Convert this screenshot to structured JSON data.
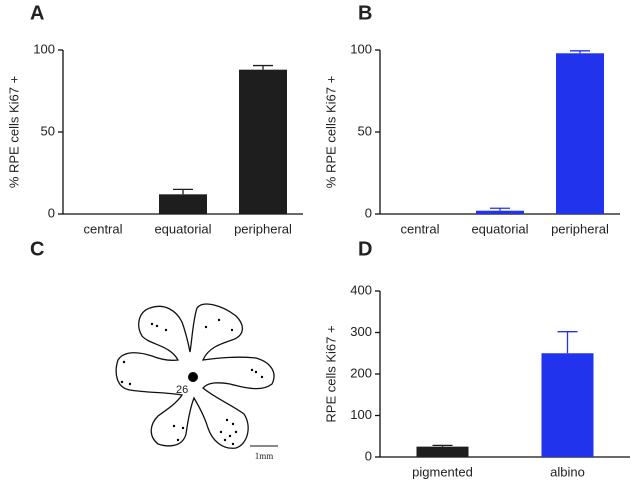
{
  "chart_data": [
    {
      "type": "bar",
      "panel": "A",
      "ylabel": "% RPE cells Ki67 +",
      "categories": [
        "central",
        "equatorial",
        "peripheral"
      ],
      "values": [
        0,
        12,
        88
      ],
      "errors": [
        0,
        3,
        2.5
      ],
      "colors": [
        "#1e1e1e",
        "#1e1e1e",
        "#1e1e1e"
      ],
      "ylim": [
        0,
        100
      ],
      "yticks": [
        0,
        50,
        100
      ]
    },
    {
      "type": "bar",
      "panel": "B",
      "ylabel": "% RPE cells Ki67 +",
      "categories": [
        "central",
        "equatorial",
        "peripheral"
      ],
      "values": [
        0,
        2,
        98
      ],
      "errors": [
        0,
        1.5,
        1.5
      ],
      "colors": [
        "#2233ee",
        "#2233ee",
        "#2233ee"
      ],
      "ylim": [
        0,
        100
      ],
      "yticks": [
        0,
        50,
        100
      ]
    },
    {
      "type": "bar",
      "panel": "D",
      "ylabel": "RPE cells Ki67 +",
      "categories": [
        "pigmented",
        "albino"
      ],
      "values": [
        25,
        250
      ],
      "errors": [
        3,
        52
      ],
      "colors": [
        "#1e1e1e",
        "#2233ee"
      ],
      "ylim": [
        0,
        400
      ],
      "yticks": [
        0,
        100,
        200,
        300,
        400
      ]
    }
  ],
  "diagram": {
    "panel": "C",
    "count": "26",
    "scale_bar": "1mm"
  }
}
